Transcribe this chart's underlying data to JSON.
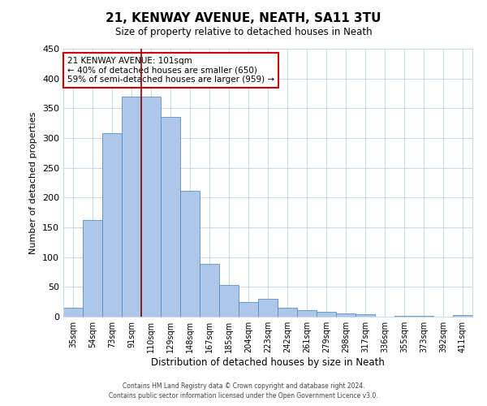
{
  "title": "21, KENWAY AVENUE, NEATH, SA11 3TU",
  "subtitle": "Size of property relative to detached houses in Neath",
  "xlabel": "Distribution of detached houses by size in Neath",
  "ylabel": "Number of detached properties",
  "categories": [
    "35sqm",
    "54sqm",
    "73sqm",
    "91sqm",
    "110sqm",
    "129sqm",
    "148sqm",
    "167sqm",
    "185sqm",
    "204sqm",
    "223sqm",
    "242sqm",
    "261sqm",
    "279sqm",
    "298sqm",
    "317sqm",
    "336sqm",
    "355sqm",
    "373sqm",
    "392sqm",
    "411sqm"
  ],
  "values": [
    15,
    162,
    308,
    370,
    370,
    335,
    212,
    88,
    53,
    25,
    30,
    15,
    11,
    8,
    5,
    4,
    0,
    2,
    1,
    0,
    3
  ],
  "bar_color": "#aec6e8",
  "bar_edge_color": "#5a8fc2",
  "background_color": "#ffffff",
  "grid_color": "#c8d8e8",
  "vline_x_index": 3.5,
  "vline_color": "#8b0000",
  "annotation_text": "21 KENWAY AVENUE: 101sqm\n← 40% of detached houses are smaller (650)\n59% of semi-detached houses are larger (959) →",
  "annotation_box_color": "#ffffff",
  "annotation_box_edge_color": "#cc0000",
  "ylim": [
    0,
    450
  ],
  "yticks": [
    0,
    50,
    100,
    150,
    200,
    250,
    300,
    350,
    400,
    450
  ],
  "footer_line1": "Contains HM Land Registry data © Crown copyright and database right 2024.",
  "footer_line2": "Contains public sector information licensed under the Open Government Licence v3.0."
}
